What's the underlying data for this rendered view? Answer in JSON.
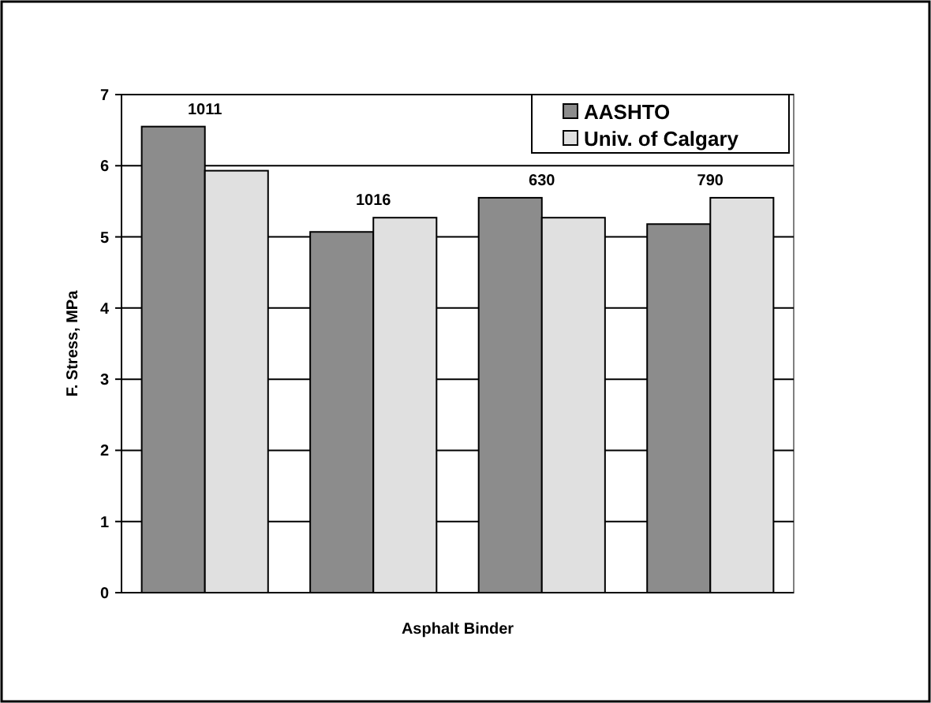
{
  "chart_data": {
    "type": "bar",
    "xlabel": "Asphalt Binder",
    "ylabel": "F. Stress, MPa",
    "categories": [
      "1011",
      "1016",
      "630",
      "790"
    ],
    "series": [
      {
        "name": "AASHTO",
        "color": "#8c8c8c",
        "values": [
          6.55,
          5.07,
          5.55,
          5.18
        ]
      },
      {
        "name": "Univ. of Calgary",
        "color": "#e0e0e0",
        "values": [
          5.93,
          5.27,
          5.27,
          5.55
        ]
      }
    ],
    "ylim": [
      0,
      7
    ],
    "yticks": [
      0,
      1,
      2,
      3,
      4,
      5,
      6,
      7
    ],
    "grid": "y",
    "legend": "top right"
  }
}
